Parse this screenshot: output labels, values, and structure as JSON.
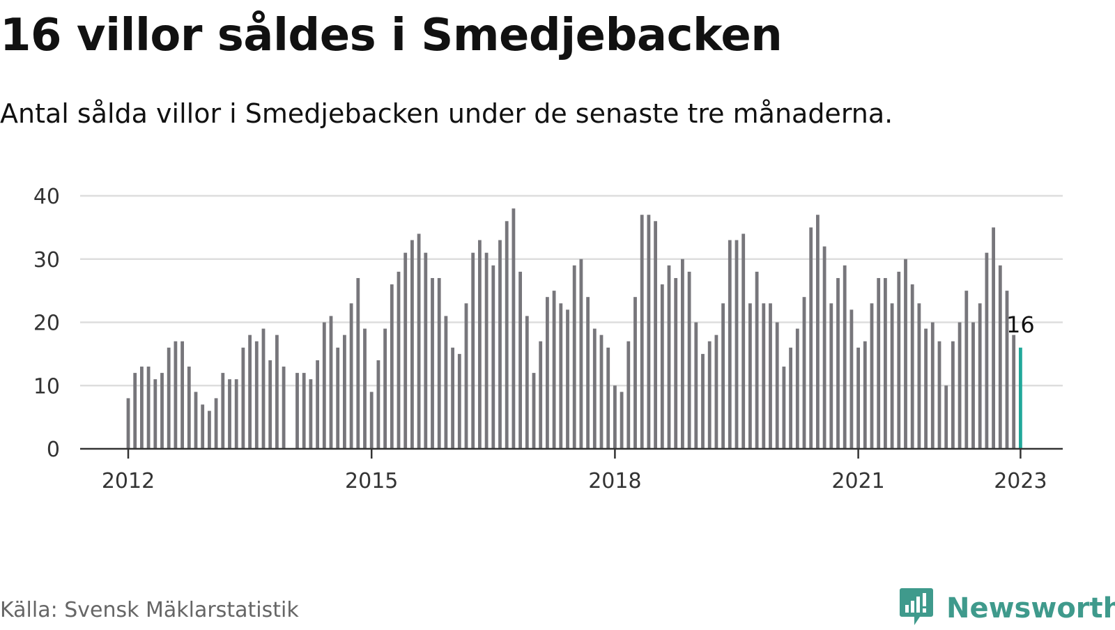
{
  "header": {
    "title": "16 villor såldes i Smedjebacken",
    "subtitle": "Antal sålda villor i Smedjebacken under de senaste tre månaderna."
  },
  "footer": {
    "source": "Källa: Svensk Mäklarstatistik",
    "brand": "Newsworthy",
    "brand_icon": "newsworthy-logo-icon"
  },
  "colors": {
    "bar": "#77767b",
    "highlight": "#21a89a",
    "grid": "#dddddd",
    "axis": "#333333",
    "brand": "#3f9a8c"
  },
  "chart_data": {
    "type": "bar",
    "title": "16 villor såldes i Smedjebacken",
    "subtitle": "Antal sålda villor i Smedjebacken under de senaste tre månaderna.",
    "xlabel": "",
    "ylabel": "",
    "x_start": "2012-01",
    "x_interval": "month",
    "ylim": [
      0,
      40
    ],
    "y_ticks": [
      0,
      10,
      20,
      30,
      40
    ],
    "x_ticks": [
      "2012",
      "2015",
      "2018",
      "2021",
      "2023"
    ],
    "grid": true,
    "highlight": {
      "x": "2023-01",
      "value": 16,
      "label": "16"
    },
    "values": [
      8,
      12,
      13,
      13,
      11,
      12,
      16,
      17,
      17,
      13,
      9,
      7,
      6,
      8,
      12,
      11,
      11,
      16,
      18,
      17,
      19,
      14,
      18,
      13,
      null,
      12,
      12,
      11,
      14,
      20,
      21,
      16,
      18,
      23,
      27,
      19,
      9,
      14,
      19,
      26,
      28,
      31,
      33,
      34,
      31,
      27,
      27,
      21,
      16,
      15,
      23,
      31,
      33,
      31,
      29,
      33,
      36,
      38,
      28,
      21,
      12,
      17,
      24,
      25,
      23,
      22,
      29,
      30,
      24,
      19,
      18,
      16,
      10,
      9,
      17,
      24,
      37,
      37,
      36,
      26,
      29,
      27,
      30,
      28,
      20,
      15,
      17,
      18,
      23,
      33,
      33,
      34,
      23,
      28,
      23,
      23,
      20,
      13,
      16,
      19,
      24,
      35,
      37,
      32,
      23,
      27,
      29,
      22,
      16,
      17,
      23,
      27,
      27,
      23,
      28,
      30,
      26,
      23,
      19,
      20,
      17,
      10,
      17,
      20,
      25,
      20,
      23,
      31,
      35,
      29,
      25,
      18,
      16
    ]
  }
}
